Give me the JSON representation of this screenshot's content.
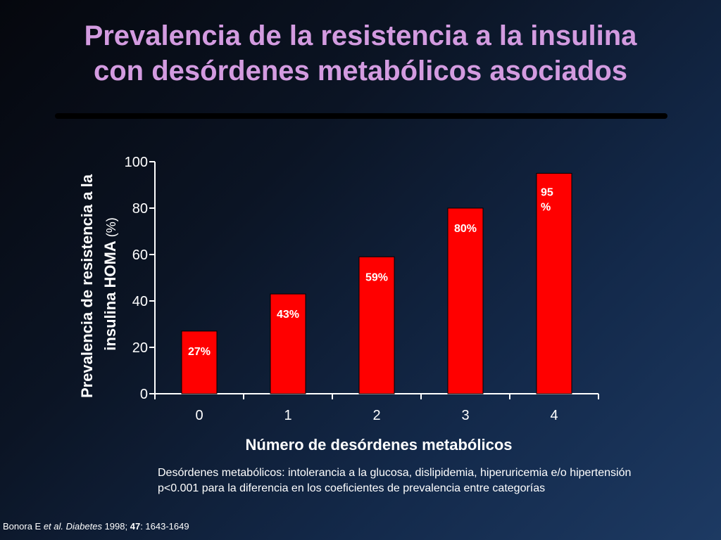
{
  "slide": {
    "title_line1": "Prevalencia de la resistencia a la insulina",
    "title_line2": "con desórdenes metabólicos asociados",
    "note_line1": "Desórdenes metabólicos: intolerancia a la glucosa, dislipidemia, hiperuricemia e/o hipertensión",
    "note_line2": "p<0.001 para la diferencia en los coeficientes de prevalencia entre categorías",
    "citation": {
      "author": "Bonora E ",
      "etal": "et al.",
      "journal": "Diabetes",
      "year": " 1998; ",
      "volume": "47",
      "pages": ": 1643-1649"
    }
  },
  "chart_data": {
    "type": "bar",
    "categories": [
      "0",
      "1",
      "2",
      "3",
      "4"
    ],
    "values": [
      27,
      43,
      59,
      80,
      95
    ],
    "data_labels": [
      "27%",
      "43%",
      "59%",
      "80%",
      "95\n%"
    ],
    "xlabel": "Número de desórdenes metabólicos",
    "ylabel_line1": "Prevalencia de resistencia a la",
    "ylabel_line2_main": "insulina  HOMA",
    "ylabel_line2_unit": " (%)",
    "ylim": [
      0,
      100
    ],
    "yticks": [
      "0",
      "20",
      "40",
      "60",
      "80",
      "100"
    ],
    "grid": false,
    "legend": "none",
    "bar_color": "#ff0000",
    "axis_color": "#ffffff"
  }
}
